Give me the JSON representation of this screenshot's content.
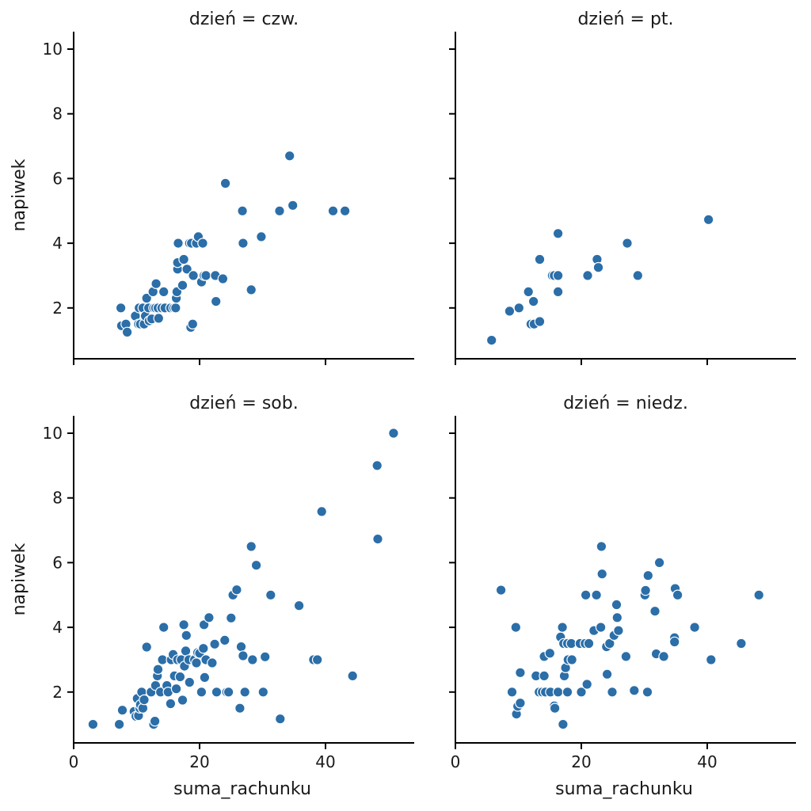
{
  "chart_data": {
    "type": "scatter",
    "x_label": "suma_rachunku",
    "y_label": "napiwek",
    "color": "#2b6ea8",
    "xlim": [
      0,
      54
    ],
    "ylim": [
      0.4,
      10.6
    ],
    "x_ticks": [
      0,
      20,
      40
    ],
    "y_ticks": [
      2,
      4,
      6,
      8,
      10
    ],
    "panels": [
      {
        "title": "dzień = czw.",
        "points": [
          [
            7.5,
            2.0
          ],
          [
            7.6,
            1.45
          ],
          [
            8.3,
            1.5
          ],
          [
            8.5,
            1.25
          ],
          [
            9.8,
            1.75
          ],
          [
            10.3,
            1.5
          ],
          [
            10.4,
            2.0
          ],
          [
            10.6,
            1.5
          ],
          [
            11.0,
            2.0
          ],
          [
            11.2,
            1.5
          ],
          [
            11.4,
            1.75
          ],
          [
            11.6,
            2.3
          ],
          [
            11.9,
            2.0
          ],
          [
            12.0,
            1.6
          ],
          [
            12.4,
            1.66
          ],
          [
            12.6,
            2.5
          ],
          [
            12.7,
            2.0
          ],
          [
            13.0,
            2.0
          ],
          [
            13.1,
            2.75
          ],
          [
            13.4,
            2.0
          ],
          [
            13.5,
            1.68
          ],
          [
            14.0,
            2.0
          ],
          [
            14.3,
            2.5
          ],
          [
            14.5,
            2.0
          ],
          [
            15.4,
            2.0
          ],
          [
            15.9,
            2.0
          ],
          [
            16.2,
            2.0
          ],
          [
            16.3,
            2.3
          ],
          [
            16.4,
            2.5
          ],
          [
            16.5,
            3.2
          ],
          [
            16.5,
            3.4
          ],
          [
            16.6,
            4.0
          ],
          [
            17.3,
            2.7
          ],
          [
            17.5,
            3.5
          ],
          [
            18.0,
            3.2
          ],
          [
            18.4,
            4.0
          ],
          [
            18.6,
            1.4
          ],
          [
            18.7,
            4.0
          ],
          [
            18.9,
            1.5
          ],
          [
            19.0,
            3.0
          ],
          [
            19.5,
            4.0
          ],
          [
            19.8,
            4.2
          ],
          [
            20.3,
            2.8
          ],
          [
            20.5,
            4.0
          ],
          [
            20.7,
            3.0
          ],
          [
            21.0,
            3.0
          ],
          [
            22.5,
            3.0
          ],
          [
            22.6,
            2.2
          ],
          [
            23.7,
            2.9
          ],
          [
            24.1,
            5.85
          ],
          [
            26.8,
            5.0
          ],
          [
            26.9,
            4.0
          ],
          [
            28.2,
            2.56
          ],
          [
            29.8,
            4.2
          ],
          [
            32.7,
            5.0
          ],
          [
            34.3,
            6.7
          ],
          [
            34.8,
            5.17
          ],
          [
            41.2,
            5.0
          ],
          [
            43.1,
            5.0
          ]
        ]
      },
      {
        "title": "dzień = pt.",
        "points": [
          [
            5.75,
            1.0
          ],
          [
            8.6,
            1.9
          ],
          [
            10.1,
            2.0
          ],
          [
            11.6,
            2.5
          ],
          [
            12.0,
            1.5
          ],
          [
            12.4,
            2.2
          ],
          [
            12.5,
            1.5
          ],
          [
            13.4,
            1.58
          ],
          [
            13.4,
            3.5
          ],
          [
            15.4,
            3.0
          ],
          [
            15.7,
            3.0
          ],
          [
            16.3,
            3.0
          ],
          [
            16.3,
            2.5
          ],
          [
            16.3,
            4.3
          ],
          [
            21.0,
            3.0
          ],
          [
            22.5,
            3.5
          ],
          [
            22.7,
            3.25
          ],
          [
            27.3,
            4.0
          ],
          [
            28.97,
            3.0
          ],
          [
            40.2,
            4.73
          ]
        ]
      },
      {
        "title": "dzień = sob.",
        "points": [
          [
            3.07,
            1.0
          ],
          [
            7.25,
            1.0
          ],
          [
            7.74,
            1.44
          ],
          [
            9.6,
            1.4
          ],
          [
            9.9,
            1.25
          ],
          [
            10.1,
            1.8
          ],
          [
            10.3,
            1.27
          ],
          [
            10.5,
            1.5
          ],
          [
            10.6,
            1.61
          ],
          [
            10.8,
            2.0
          ],
          [
            11.0,
            1.5
          ],
          [
            11.2,
            1.76
          ],
          [
            11.6,
            3.39
          ],
          [
            12.3,
            2.0
          ],
          [
            12.7,
            1.0
          ],
          [
            12.9,
            1.1
          ],
          [
            13.0,
            2.2
          ],
          [
            13.3,
            2.5
          ],
          [
            13.4,
            2.7
          ],
          [
            13.8,
            2.0
          ],
          [
            14.1,
            3.0
          ],
          [
            14.3,
            4.0
          ],
          [
            14.8,
            2.2
          ],
          [
            15.0,
            2.0
          ],
          [
            15.4,
            1.64
          ],
          [
            15.5,
            3.0
          ],
          [
            15.8,
            3.16
          ],
          [
            16.0,
            2.5
          ],
          [
            16.3,
            2.1
          ],
          [
            16.5,
            3.0
          ],
          [
            16.9,
            2.47
          ],
          [
            17.1,
            3.0
          ],
          [
            17.3,
            1.75
          ],
          [
            17.5,
            4.08
          ],
          [
            17.6,
            2.8
          ],
          [
            17.8,
            3.27
          ],
          [
            17.9,
            3.75
          ],
          [
            18.3,
            3.0
          ],
          [
            18.4,
            2.3
          ],
          [
            19.2,
            3.0
          ],
          [
            19.5,
            2.9
          ],
          [
            19.7,
            3.22
          ],
          [
            20.0,
            3.2
          ],
          [
            20.3,
            2.0
          ],
          [
            20.6,
            3.35
          ],
          [
            20.7,
            4.08
          ],
          [
            20.8,
            2.45
          ],
          [
            21.0,
            3.0
          ],
          [
            21.5,
            4.3
          ],
          [
            22.0,
            2.9
          ],
          [
            22.4,
            3.48
          ],
          [
            22.7,
            2.0
          ],
          [
            24.0,
            3.6
          ],
          [
            24.3,
            2.0
          ],
          [
            24.6,
            2.0
          ],
          [
            25.0,
            4.29
          ],
          [
            25.3,
            5.0
          ],
          [
            25.9,
            5.16
          ],
          [
            26.4,
            1.5
          ],
          [
            26.6,
            3.4
          ],
          [
            26.9,
            3.12
          ],
          [
            27.2,
            2.0
          ],
          [
            28.2,
            6.5
          ],
          [
            28.4,
            3.0
          ],
          [
            29.0,
            5.92
          ],
          [
            30.1,
            2.0
          ],
          [
            30.4,
            3.09
          ],
          [
            31.3,
            5.0
          ],
          [
            32.8,
            1.17
          ],
          [
            35.8,
            4.67
          ],
          [
            38.1,
            3.0
          ],
          [
            38.7,
            3.0
          ],
          [
            39.4,
            7.58
          ],
          [
            44.3,
            2.5
          ],
          [
            48.2,
            9.0
          ],
          [
            48.3,
            6.73
          ],
          [
            50.8,
            10.0
          ]
        ]
      },
      {
        "title": "dzień = niedz.",
        "points": [
          [
            7.25,
            5.15
          ],
          [
            9.0,
            2.0
          ],
          [
            9.6,
            4.0
          ],
          [
            9.7,
            1.32
          ],
          [
            9.9,
            1.56
          ],
          [
            10.3,
            1.66
          ],
          [
            10.3,
            2.6
          ],
          [
            12.8,
            2.5
          ],
          [
            13.3,
            2.0
          ],
          [
            13.8,
            2.0
          ],
          [
            14.1,
            2.5
          ],
          [
            14.1,
            3.1
          ],
          [
            14.3,
            2.0
          ],
          [
            15.0,
            3.2
          ],
          [
            15.1,
            2.0
          ],
          [
            15.7,
            1.57
          ],
          [
            15.8,
            1.5
          ],
          [
            16.3,
            2.0
          ],
          [
            16.7,
            3.7
          ],
          [
            17.0,
            4.0
          ],
          [
            17.1,
            1.0
          ],
          [
            17.2,
            3.5
          ],
          [
            17.3,
            2.5
          ],
          [
            17.5,
            2.75
          ],
          [
            17.8,
            2.0
          ],
          [
            17.8,
            3.5
          ],
          [
            17.9,
            3.0
          ],
          [
            18.4,
            3.5
          ],
          [
            18.5,
            3.0
          ],
          [
            19.8,
            3.5
          ],
          [
            20.0,
            2.0
          ],
          [
            20.6,
            3.5
          ],
          [
            20.7,
            5.0
          ],
          [
            20.9,
            2.24
          ],
          [
            21.2,
            3.5
          ],
          [
            22.0,
            3.9
          ],
          [
            22.4,
            5.0
          ],
          [
            23.1,
            4.0
          ],
          [
            23.2,
            6.5
          ],
          [
            23.3,
            5.65
          ],
          [
            24.0,
            3.4
          ],
          [
            24.1,
            2.55
          ],
          [
            24.5,
            3.5
          ],
          [
            24.9,
            2.0
          ],
          [
            25.2,
            3.75
          ],
          [
            25.6,
            4.7
          ],
          [
            25.7,
            4.3
          ],
          [
            25.9,
            3.9
          ],
          [
            27.1,
            3.1
          ],
          [
            28.4,
            2.05
          ],
          [
            30.1,
            5.0
          ],
          [
            30.2,
            5.14
          ],
          [
            30.5,
            2.0
          ],
          [
            30.6,
            5.6
          ],
          [
            31.7,
            4.5
          ],
          [
            31.9,
            3.18
          ],
          [
            32.4,
            6.0
          ],
          [
            33.1,
            3.1
          ],
          [
            34.8,
            3.68
          ],
          [
            34.8,
            3.55
          ],
          [
            34.9,
            5.2
          ],
          [
            35.3,
            5.0
          ],
          [
            38.0,
            4.0
          ],
          [
            40.6,
            3.0
          ],
          [
            45.4,
            3.5
          ],
          [
            48.2,
            5.0
          ]
        ]
      }
    ]
  }
}
